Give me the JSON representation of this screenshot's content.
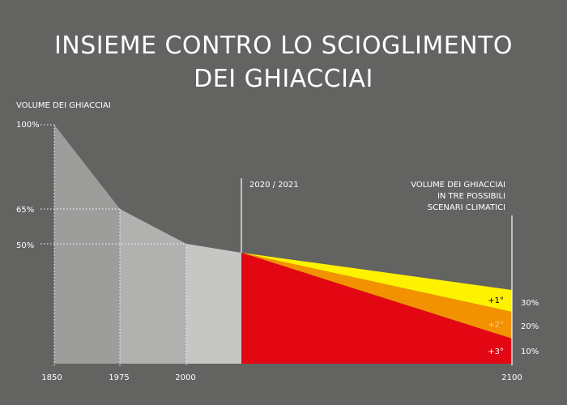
{
  "chart_data": {
    "type": "area",
    "title_lines": [
      "INSIEME CONTRO LO SCIOGLIMENTO",
      "DEI GHIACCIAI"
    ],
    "ylabel": "VOLUME DEI GHIACCIAI",
    "x_ticks": [
      "1850",
      "1975",
      "2000",
      "2100"
    ],
    "y_ticks": [
      "100%",
      "65%",
      "50%"
    ],
    "historical": {
      "x": [
        1850,
        1975,
        2000,
        2021
      ],
      "y": [
        100,
        65,
        50,
        47
      ]
    },
    "marker_label": "2020 / 2021",
    "projection_label_lines": [
      "VOLUME DEI GHIACCIAI",
      "IN TRE POSSIBILI",
      "SCENARI CLIMATICI"
    ],
    "scenarios": [
      {
        "name": "+1°",
        "end_year": 2100,
        "end_value": 30,
        "value_label": "30%",
        "color": "#fff200"
      },
      {
        "name": "+2°",
        "end_year": 2100,
        "end_value": 20,
        "value_label": "20%",
        "color": "#f39200"
      },
      {
        "name": "+3°",
        "end_year": 2100,
        "end_value": 10,
        "value_label": "10%",
        "color": "#e30613"
      }
    ],
    "colors": {
      "background": "#636362",
      "band_1850_1975": "#9d9d9c",
      "band_1975_2000": "#b1b1b0",
      "band_2000_2021": "#c6c6c5",
      "scenario_label_plus2": "#fbc98a",
      "scenario_label_plus3": "#ffffff",
      "scenario_label_plus1": "#000000"
    }
  }
}
